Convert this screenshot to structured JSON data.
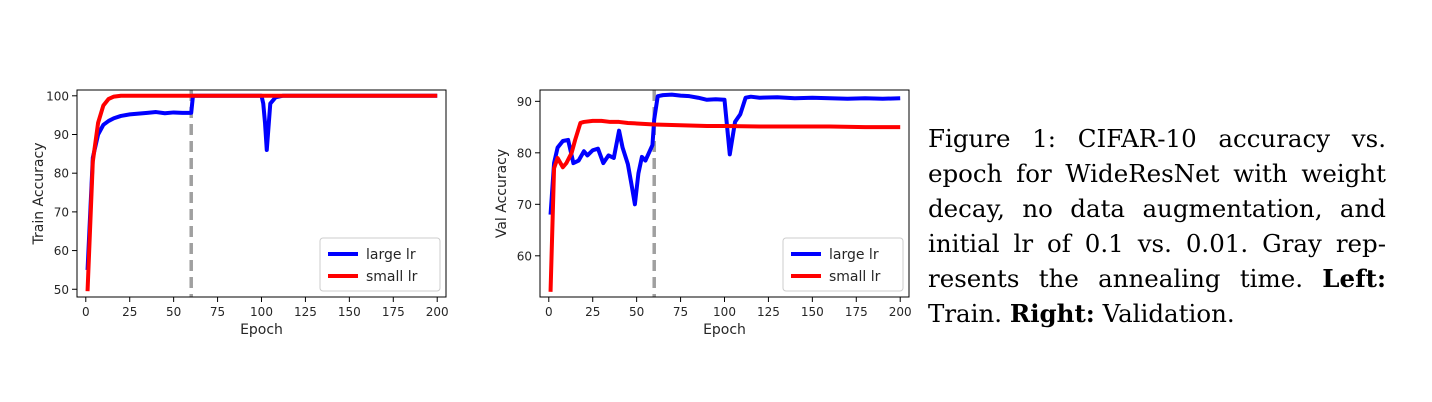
{
  "chart_data": [
    {
      "type": "line",
      "xlabel": "Epoch",
      "ylabel": "Train Accuracy",
      "xlim": [
        -5,
        205
      ],
      "ylim": [
        48,
        101.5
      ],
      "xticks": [
        0,
        25,
        50,
        75,
        100,
        125,
        150,
        175,
        200
      ],
      "yticks": [
        50,
        60,
        70,
        80,
        90,
        100
      ],
      "legend_placement": "lower-right",
      "grid": false,
      "annealing_epoch": 60,
      "series": [
        {
          "name": "large lr",
          "color": "#0000ff",
          "x": [
            1,
            4,
            7,
            10,
            13,
            16,
            20,
            25,
            30,
            35,
            40,
            45,
            50,
            55,
            60,
            61,
            100,
            101,
            102,
            103,
            105,
            108,
            112,
            200
          ],
          "y": [
            55,
            84,
            90,
            92.5,
            93.5,
            94.2,
            94.8,
            95.2,
            95.4,
            95.6,
            95.8,
            95.5,
            95.7,
            95.6,
            95.6,
            100,
            100,
            98,
            93,
            86,
            98,
            99.6,
            100,
            100
          ]
        },
        {
          "name": "small lr",
          "color": "#ff0000",
          "x": [
            1,
            4,
            7,
            10,
            13,
            16,
            20,
            200
          ],
          "y": [
            49.5,
            83,
            93,
            97.5,
            99.2,
            99.8,
            100,
            100
          ]
        }
      ]
    },
    {
      "type": "line",
      "xlabel": "Epoch",
      "ylabel": "Val Accuracy",
      "xlim": [
        -5,
        205
      ],
      "ylim": [
        52,
        92.2
      ],
      "xticks": [
        0,
        25,
        50,
        75,
        100,
        125,
        150,
        175,
        200
      ],
      "yticks": [
        60,
        70,
        80,
        90
      ],
      "legend_placement": "lower-right",
      "grid": false,
      "annealing_epoch": 60,
      "series": [
        {
          "name": "large lr",
          "color": "#0000ff",
          "x": [
            1,
            3,
            5,
            8,
            11,
            14,
            17,
            20,
            22,
            25,
            28,
            31,
            34,
            37,
            40,
            42,
            45,
            47,
            49,
            51,
            53,
            55,
            57,
            59,
            60,
            62,
            65,
            70,
            75,
            80,
            85,
            90,
            95,
            100,
            103,
            106,
            109,
            112,
            115,
            120,
            130,
            140,
            150,
            160,
            170,
            180,
            190,
            200
          ],
          "y": [
            68,
            78,
            81,
            82.3,
            82.5,
            78,
            78.5,
            80.3,
            79.5,
            80.5,
            80.8,
            78,
            79.5,
            79,
            84.3,
            81,
            77.8,
            74,
            70,
            76,
            79.2,
            78.5,
            80,
            81.5,
            86.5,
            91,
            91.2,
            91.3,
            91.1,
            91,
            90.7,
            90.3,
            90.4,
            90.3,
            79.7,
            86,
            87.5,
            90.7,
            90.9,
            90.7,
            90.8,
            90.6,
            90.7,
            90.6,
            90.5,
            90.6,
            90.5,
            90.6
          ]
        },
        {
          "name": "small lr",
          "color": "#ff0000",
          "x": [
            1,
            3,
            5,
            8,
            10,
            13,
            15,
            18,
            20,
            25,
            30,
            35,
            40,
            45,
            50,
            55,
            60,
            70,
            80,
            90,
            100,
            120,
            140,
            160,
            180,
            200
          ],
          "y": [
            53,
            77,
            79,
            77.2,
            78,
            80,
            82.5,
            85.8,
            86,
            86.2,
            86.2,
            86,
            86,
            85.8,
            85.7,
            85.6,
            85.5,
            85.4,
            85.3,
            85.2,
            85.2,
            85.1,
            85.1,
            85.1,
            85.0,
            85.0
          ]
        }
      ]
    }
  ],
  "caption": {
    "figure_label": "Figure 1:",
    "text": " CIFAR-10 accuracy vs. epoch for WideResNet with weight decay, no data augmentation, and initial lr of 0.1 vs. 0.01. Gray rep­resents the annealing time. ",
    "left_label": "Left:",
    "left_text": " Train. ",
    "right_label": "Right:",
    "right_text": " Validation."
  }
}
